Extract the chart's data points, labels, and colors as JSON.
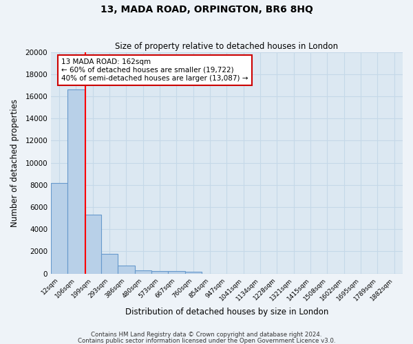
{
  "title": "13, MADA ROAD, ORPINGTON, BR6 8HQ",
  "subtitle": "Size of property relative to detached houses in London",
  "xlabel": "Distribution of detached houses by size in London",
  "ylabel": "Number of detached properties",
  "categories": [
    "12sqm",
    "106sqm",
    "199sqm",
    "293sqm",
    "386sqm",
    "480sqm",
    "573sqm",
    "667sqm",
    "760sqm",
    "854sqm",
    "947sqm",
    "1041sqm",
    "1134sqm",
    "1228sqm",
    "1321sqm",
    "1415sqm",
    "1508sqm",
    "1602sqm",
    "1695sqm",
    "1789sqm",
    "1882sqm"
  ],
  "bar_values": [
    8200,
    16600,
    5300,
    1750,
    750,
    300,
    200,
    200,
    170,
    0,
    0,
    0,
    0,
    0,
    0,
    0,
    0,
    0,
    0,
    0,
    0
  ],
  "bar_color": "#b8d0e8",
  "bar_edge_color": "#6699cc",
  "bar_edge_width": 0.8,
  "grid_color": "#c5d8e8",
  "background_color": "#dce8f2",
  "fig_background_color": "#eef3f8",
  "red_line_x": 1.56,
  "ylim": [
    0,
    20000
  ],
  "yticks": [
    0,
    2000,
    4000,
    6000,
    8000,
    10000,
    12000,
    14000,
    16000,
    18000,
    20000
  ],
  "annotation_title": "13 MADA ROAD: 162sqm",
  "annotation_line1": "← 60% of detached houses are smaller (19,722)",
  "annotation_line2": "40% of semi-detached houses are larger (13,087) →",
  "footer1": "Contains HM Land Registry data © Crown copyright and database right 2024.",
  "footer2": "Contains public sector information licensed under the Open Government Licence v3.0."
}
